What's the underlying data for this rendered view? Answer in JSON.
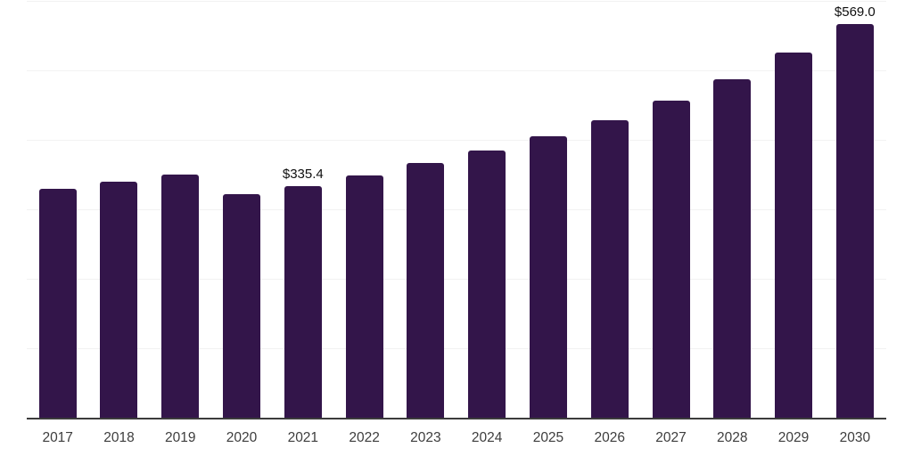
{
  "chart_data": {
    "type": "bar",
    "title": "",
    "xlabel": "",
    "ylabel": "",
    "categories": [
      "2017",
      "2018",
      "2019",
      "2020",
      "2021",
      "2022",
      "2023",
      "2024",
      "2025",
      "2026",
      "2027",
      "2028",
      "2029",
      "2030"
    ],
    "values": [
      331.1,
      341.4,
      351.6,
      323.4,
      335.4,
      350.1,
      368.3,
      386.2,
      406.7,
      429.3,
      458.0,
      488.8,
      527.6,
      569.0
    ],
    "point_labels": [
      "",
      "",
      "",
      "",
      "$335.4",
      "",
      "",
      "",
      "",
      "",
      "",
      "",
      "",
      "$569.0"
    ],
    "value_prefix": "$",
    "ylim": [
      0,
      600
    ],
    "grid": true,
    "gridline_values": [
      100,
      200,
      300,
      400,
      500,
      600
    ],
    "legend": "none",
    "colors": {
      "bar": "#33154a",
      "gridline": "#f2f2f2",
      "axis_line": "#3c3c3c",
      "tick_label": "#3d3d3d",
      "point_label": "#0f0f0f",
      "background": "#ffffff"
    }
  }
}
